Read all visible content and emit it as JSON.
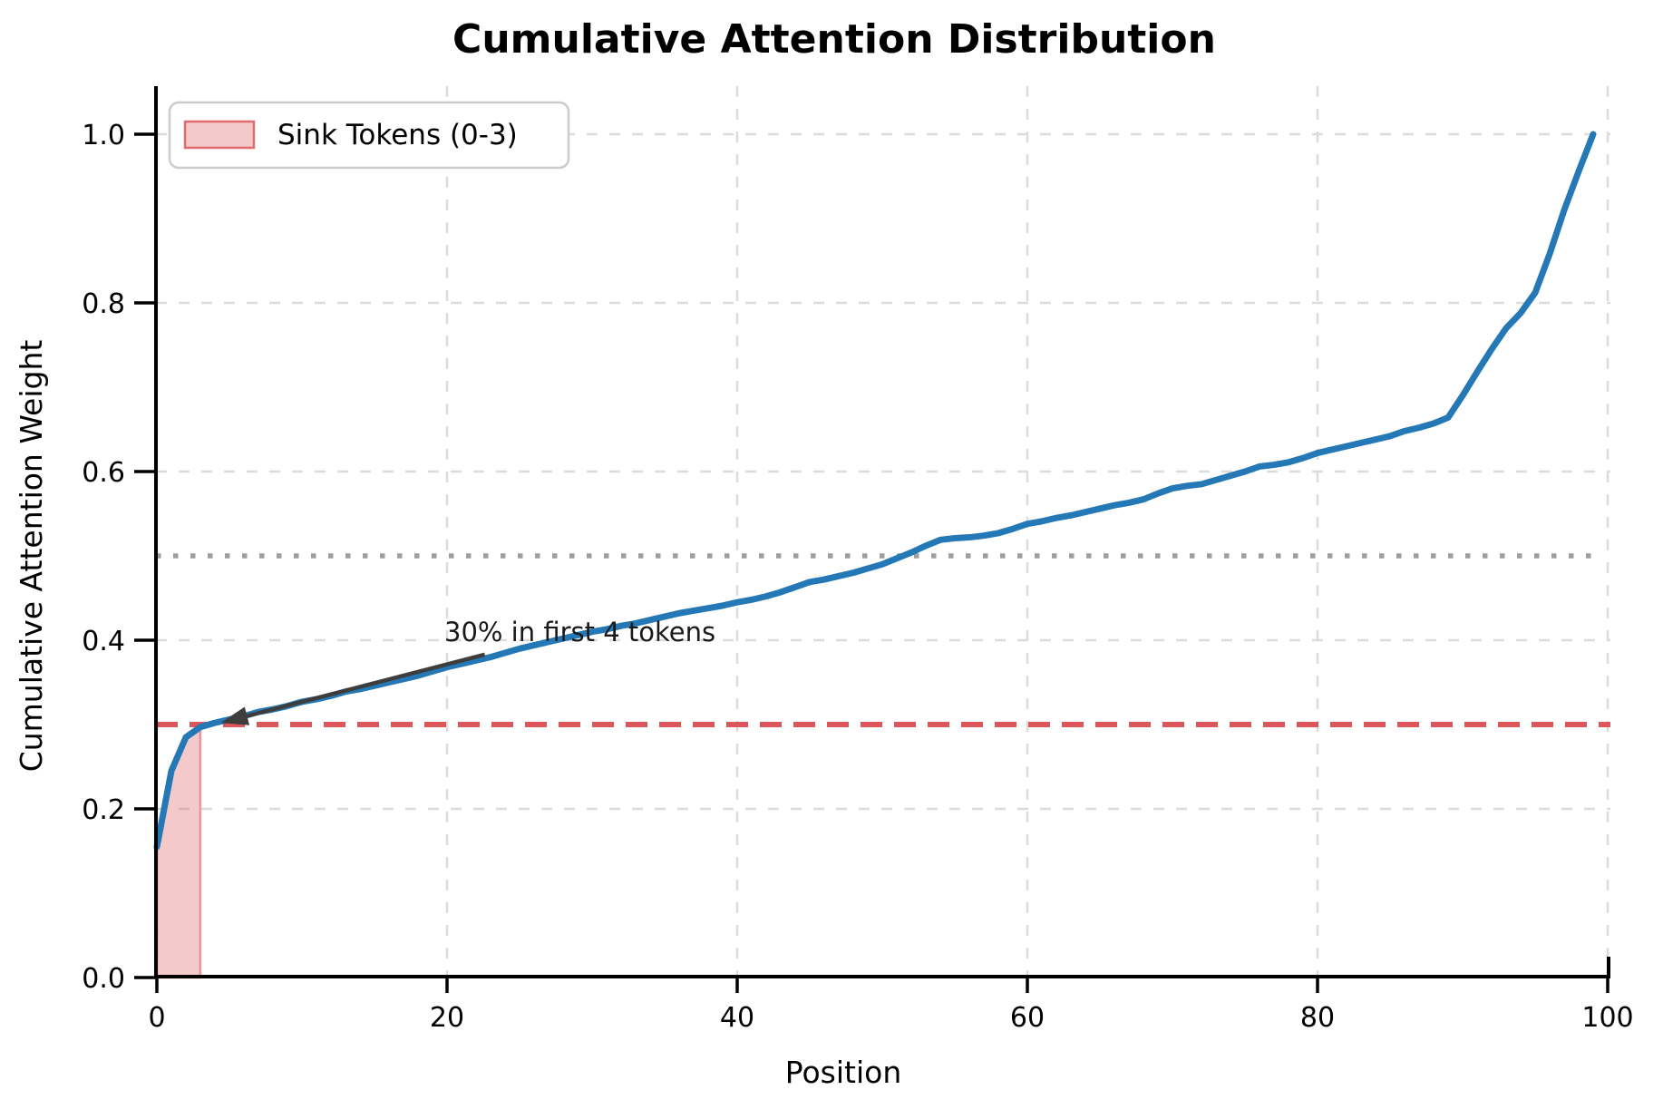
{
  "title": "Cumulative Attention Distribution",
  "chart_data": {
    "type": "line",
    "title": "Cumulative Attention Distribution",
    "xlabel": "Position",
    "ylabel": "Cumulative Attention Weight",
    "xlim": [
      0,
      100
    ],
    "ylim": [
      0.0,
      1.0
    ],
    "x_ticks": [
      0,
      20,
      40,
      60,
      80,
      100
    ],
    "y_ticks": [
      0.0,
      0.2,
      0.4,
      0.6,
      0.8,
      1.0
    ],
    "grid": "dashed-light-gray",
    "colors": {
      "line": "#2478b5",
      "threshold_red": "#dc575b",
      "threshold_gray": "#9e9e9e",
      "sink_fill": "#dc575b",
      "grid": "#dcdcdc",
      "arrow": "#3d3d3d"
    },
    "series": [
      {
        "name": "cumulative_attention_weight",
        "color": "#2478b5",
        "x": [
          0,
          1,
          2,
          3,
          4,
          5,
          6,
          7,
          8,
          9,
          10,
          11,
          12,
          13,
          14,
          15,
          16,
          17,
          18,
          19,
          20,
          21,
          22,
          23,
          24,
          25,
          26,
          27,
          28,
          29,
          30,
          31,
          32,
          33,
          34,
          35,
          36,
          37,
          38,
          39,
          40,
          41,
          42,
          43,
          44,
          45,
          46,
          47,
          48,
          49,
          50,
          51,
          52,
          53,
          54,
          55,
          56,
          57,
          58,
          59,
          60,
          61,
          62,
          63,
          64,
          65,
          66,
          67,
          68,
          69,
          70,
          71,
          72,
          73,
          74,
          75,
          76,
          77,
          78,
          79,
          80,
          81,
          82,
          83,
          84,
          85,
          86,
          87,
          88,
          89,
          90,
          91,
          92,
          93,
          94,
          95,
          96,
          97,
          98,
          99
        ],
        "y": [
          0.155,
          0.245,
          0.285,
          0.297,
          0.302,
          0.306,
          0.31,
          0.315,
          0.318,
          0.322,
          0.327,
          0.33,
          0.334,
          0.339,
          0.342,
          0.346,
          0.35,
          0.354,
          0.358,
          0.363,
          0.368,
          0.372,
          0.376,
          0.38,
          0.385,
          0.39,
          0.394,
          0.398,
          0.402,
          0.406,
          0.41,
          0.413,
          0.417,
          0.42,
          0.424,
          0.428,
          0.432,
          0.435,
          0.438,
          0.441,
          0.445,
          0.448,
          0.452,
          0.457,
          0.463,
          0.469,
          0.472,
          0.476,
          0.48,
          0.485,
          0.49,
          0.497,
          0.504,
          0.512,
          0.519,
          0.521,
          0.522,
          0.524,
          0.527,
          0.532,
          0.538,
          0.541,
          0.545,
          0.548,
          0.552,
          0.556,
          0.56,
          0.563,
          0.567,
          0.574,
          0.58,
          0.583,
          0.585,
          0.59,
          0.595,
          0.6,
          0.606,
          0.608,
          0.611,
          0.616,
          0.622,
          0.626,
          0.63,
          0.634,
          0.638,
          0.642,
          0.648,
          0.652,
          0.657,
          0.664,
          0.69,
          0.718,
          0.745,
          0.77,
          0.788,
          0.812,
          0.858,
          0.91,
          0.956,
          1.0
        ]
      }
    ],
    "reference_lines": [
      {
        "name": "30-percent-threshold",
        "orientation": "horizontal",
        "value": 0.3,
        "style": "dashed",
        "color": "#dc575b"
      },
      {
        "name": "50-percent-threshold",
        "orientation": "horizontal",
        "value": 0.5,
        "style": "dotted",
        "color": "#9e9e9e"
      }
    ],
    "sink_region": {
      "label": "Sink Tokens (0-3)",
      "x_start": 0,
      "x_end": 3,
      "fill": "#dc575b",
      "fill_opacity": 0.32
    },
    "annotation": {
      "text": "30% in first 4 tokens",
      "arrow_tip_xy": [
        4.4,
        0.302
      ],
      "arrow_tail_xy": [
        22.6,
        0.383
      ],
      "text_xy": [
        19.8,
        0.399
      ]
    },
    "legend": {
      "position": "upper left",
      "entries": [
        {
          "label": "Sink Tokens (0-3)",
          "swatch": "pink-fill-red-border"
        }
      ]
    }
  }
}
